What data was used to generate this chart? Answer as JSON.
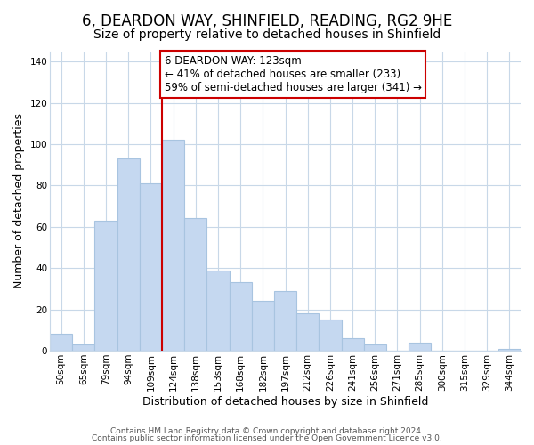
{
  "title": "6, DEARDON WAY, SHINFIELD, READING, RG2 9HE",
  "subtitle": "Size of property relative to detached houses in Shinfield",
  "xlabel": "Distribution of detached houses by size in Shinfield",
  "ylabel": "Number of detached properties",
  "bar_labels": [
    "50sqm",
    "65sqm",
    "79sqm",
    "94sqm",
    "109sqm",
    "124sqm",
    "138sqm",
    "153sqm",
    "168sqm",
    "182sqm",
    "197sqm",
    "212sqm",
    "226sqm",
    "241sqm",
    "256sqm",
    "271sqm",
    "285sqm",
    "300sqm",
    "315sqm",
    "329sqm",
    "344sqm"
  ],
  "bar_values": [
    8,
    3,
    63,
    93,
    81,
    102,
    64,
    39,
    33,
    24,
    29,
    18,
    15,
    6,
    3,
    0,
    4,
    0,
    0,
    0,
    1
  ],
  "bar_color": "#c5d8f0",
  "bar_edge_color": "#a8c4e0",
  "highlight_bar_index": 5,
  "highlight_line_color": "#cc0000",
  "annotation_line1": "6 DEARDON WAY: 123sqm",
  "annotation_line2": "← 41% of detached houses are smaller (233)",
  "annotation_line3": "59% of semi-detached houses are larger (341) →",
  "annotation_box_edge_color": "#cc0000",
  "ylim": [
    0,
    145
  ],
  "yticks": [
    0,
    20,
    40,
    60,
    80,
    100,
    120,
    140
  ],
  "footer_line1": "Contains HM Land Registry data © Crown copyright and database right 2024.",
  "footer_line2": "Contains public sector information licensed under the Open Government Licence v3.0.",
  "bg_color": "#ffffff",
  "grid_color": "#c8d8e8",
  "title_fontsize": 12,
  "subtitle_fontsize": 10,
  "xlabel_fontsize": 9,
  "ylabel_fontsize": 9,
  "tick_fontsize": 7.5,
  "footer_fontsize": 6.5,
  "annotation_fontsize": 8.5
}
